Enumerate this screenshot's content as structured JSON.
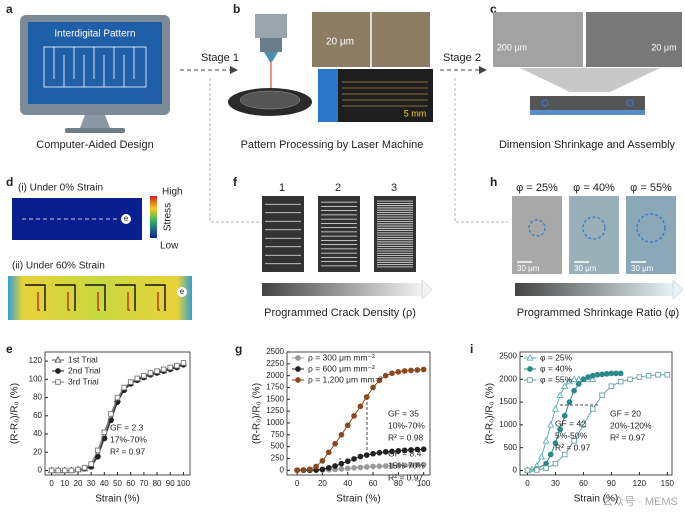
{
  "figure": {
    "a": {
      "label": "a",
      "screen_title": "Interdigital Pattern",
      "caption": "Computer-Aided Design"
    },
    "stage1": "Stage 1",
    "stage2": "Stage 2",
    "b": {
      "label": "b",
      "scale_top": "20 μm",
      "scale_bottom": "5 mm",
      "caption": "Pattern Processing by Laser Machine"
    },
    "c": {
      "label": "c",
      "scale_left": "200 μm",
      "scale_right": "20 μm",
      "caption": "Dimension Shrinkage and Assembly"
    },
    "d": {
      "label": "d",
      "top_title": "(i) Under 0% Strain",
      "bottom_title": "(ii) Under 60% Strain",
      "electrode": "e",
      "colorbar_high": "High",
      "colorbar_title": "Stress",
      "colorbar_low": "Low"
    },
    "f": {
      "label": "f",
      "columns": [
        "1",
        "2",
        "3"
      ],
      "caption": "Programmed Crack Density (ρ)"
    },
    "h": {
      "label": "h",
      "columns": [
        "φ = 25%",
        "φ = 40%",
        "φ = 55%"
      ],
      "scales": [
        "30 μm",
        "30 μm",
        "30 μm"
      ],
      "caption": "Programmed Shrinkage Ratio (φ)"
    },
    "watermark": "公众号 · MEMS"
  },
  "chart_data": [
    {
      "type": "line",
      "panel_label": "e",
      "xlabel": "Strain (%)",
      "ylabel": "(R-R₀)/R₀ (%)",
      "x": [
        0,
        5,
        10,
        15,
        20,
        25,
        30,
        35,
        40,
        45,
        50,
        55,
        60,
        65,
        70,
        75,
        80,
        85,
        90,
        95,
        100
      ],
      "xlim": [
        -5,
        105
      ],
      "xticks": [
        0,
        10,
        20,
        30,
        40,
        50,
        60,
        70,
        80,
        90,
        100
      ],
      "ylim": [
        -5,
        130
      ],
      "yticks": [
        0,
        20,
        40,
        60,
        80,
        100,
        120
      ],
      "series": [
        {
          "name": "1st Trial",
          "color": "#555555",
          "marker": "triangle-open",
          "values": [
            0,
            0,
            0,
            0,
            1,
            2,
            5,
            18,
            38,
            58,
            78,
            90,
            96,
            100,
            103,
            106,
            108,
            110,
            112,
            114,
            117
          ]
        },
        {
          "name": "2nd Trial",
          "color": "#222222",
          "marker": "circle-filled",
          "values": [
            0,
            0,
            0,
            0,
            1,
            2,
            4,
            15,
            35,
            55,
            75,
            88,
            95,
            99,
            102,
            105,
            107,
            109,
            111,
            113,
            116
          ]
        },
        {
          "name": "3rd Trial",
          "color": "#777777",
          "marker": "square-open",
          "values": [
            0,
            0,
            0,
            0,
            1,
            3,
            7,
            22,
            42,
            62,
            80,
            91,
            97,
            101,
            104,
            107,
            109,
            111,
            113,
            115,
            118
          ]
        }
      ],
      "annotations": [
        "GF = 2.3",
        "17%-70%",
        "R² = 0.97"
      ]
    },
    {
      "type": "line",
      "panel_label": "g",
      "xlabel": "Strain (%)",
      "ylabel": "(R-R₀)/R₀ (%)",
      "x": [
        0,
        5,
        10,
        15,
        20,
        25,
        30,
        35,
        40,
        45,
        50,
        55,
        60,
        65,
        70,
        75,
        80,
        85,
        90,
        95,
        100
      ],
      "xlim": [
        -8,
        105
      ],
      "xticks": [
        0,
        20,
        40,
        60,
        80,
        100
      ],
      "ylim": [
        -100,
        2500
      ],
      "yticks": [
        0,
        250,
        500,
        750,
        1000,
        1250,
        1500,
        1750,
        2000,
        2250,
        2500
      ],
      "series": [
        {
          "name": "ρ = 300 μm mm⁻²",
          "color": "#9a9a9a",
          "marker": "circle-filled",
          "values": [
            0,
            0,
            0,
            0,
            5,
            10,
            20,
            30,
            40,
            50,
            60,
            70,
            80,
            85,
            90,
            95,
            100,
            105,
            110,
            115,
            120
          ]
        },
        {
          "name": "ρ = 600 μm mm⁻²",
          "color": "#222222",
          "marker": "circle-filled",
          "values": [
            0,
            0,
            0,
            5,
            20,
            50,
            90,
            140,
            190,
            240,
            290,
            320,
            350,
            370,
            390,
            400,
            410,
            420,
            430,
            440,
            445
          ]
        },
        {
          "name": "ρ = 1,200 μm mm⁻²",
          "color": "#8b4a1e",
          "marker": "circle-filled",
          "values": [
            0,
            5,
            20,
            80,
            200,
            380,
            560,
            750,
            950,
            1150,
            1350,
            1550,
            1750,
            1900,
            2000,
            2050,
            2080,
            2100,
            2110,
            2120,
            2130
          ]
        }
      ],
      "annotations": [
        "GF = 35",
        "10%-70%",
        "R² = 0.98",
        "GF = 8.4",
        "15%-70%",
        "R² = 0.97"
      ]
    },
    {
      "type": "line",
      "panel_label": "i",
      "xlabel": "Strain (%)",
      "ylabel": "(R-R₀)/R₀ (%)",
      "xlim": [
        -8,
        155
      ],
      "xticks": [
        0,
        30,
        60,
        90,
        120,
        150
      ],
      "ylim": [
        -100,
        2600
      ],
      "yticks": [
        0,
        500,
        1000,
        1500,
        2000,
        2500
      ],
      "series": [
        {
          "name": "φ = 25%",
          "color": "#5fb3b3",
          "marker": "triangle-open",
          "x": [
            0,
            5,
            10,
            15,
            20,
            25,
            30,
            35,
            40,
            45,
            50,
            55,
            60,
            65,
            70
          ],
          "values": [
            0,
            20,
            100,
            300,
            650,
            1000,
            1350,
            1650,
            1850,
            1950,
            2000,
            2000,
            2000,
            2000,
            2000
          ]
        },
        {
          "name": "φ = 40%",
          "color": "#2a8a8a",
          "marker": "circle-filled",
          "x": [
            0,
            10,
            20,
            25,
            30,
            35,
            40,
            45,
            50,
            55,
            60,
            65,
            70,
            75,
            80,
            85,
            90,
            95,
            100
          ],
          "values": [
            0,
            30,
            150,
            350,
            600,
            900,
            1200,
            1500,
            1750,
            1900,
            2000,
            2050,
            2080,
            2100,
            2110,
            2120,
            2130,
            2130,
            2130
          ]
        },
        {
          "name": "φ = 55%",
          "color": "#6aa0a8",
          "marker": "square-open",
          "x": [
            0,
            10,
            20,
            30,
            40,
            50,
            60,
            70,
            80,
            90,
            100,
            110,
            120,
            130,
            140,
            150
          ],
          "values": [
            0,
            10,
            50,
            150,
            350,
            650,
            1000,
            1350,
            1650,
            1850,
            1950,
            2000,
            2050,
            2080,
            2100,
            2100
          ]
        }
      ],
      "annotations": [
        "GF = 42",
        "5%-50%",
        "R² = 0.97",
        "GF = 20",
        "20%-120%",
        "R² = 0.97"
      ]
    }
  ]
}
